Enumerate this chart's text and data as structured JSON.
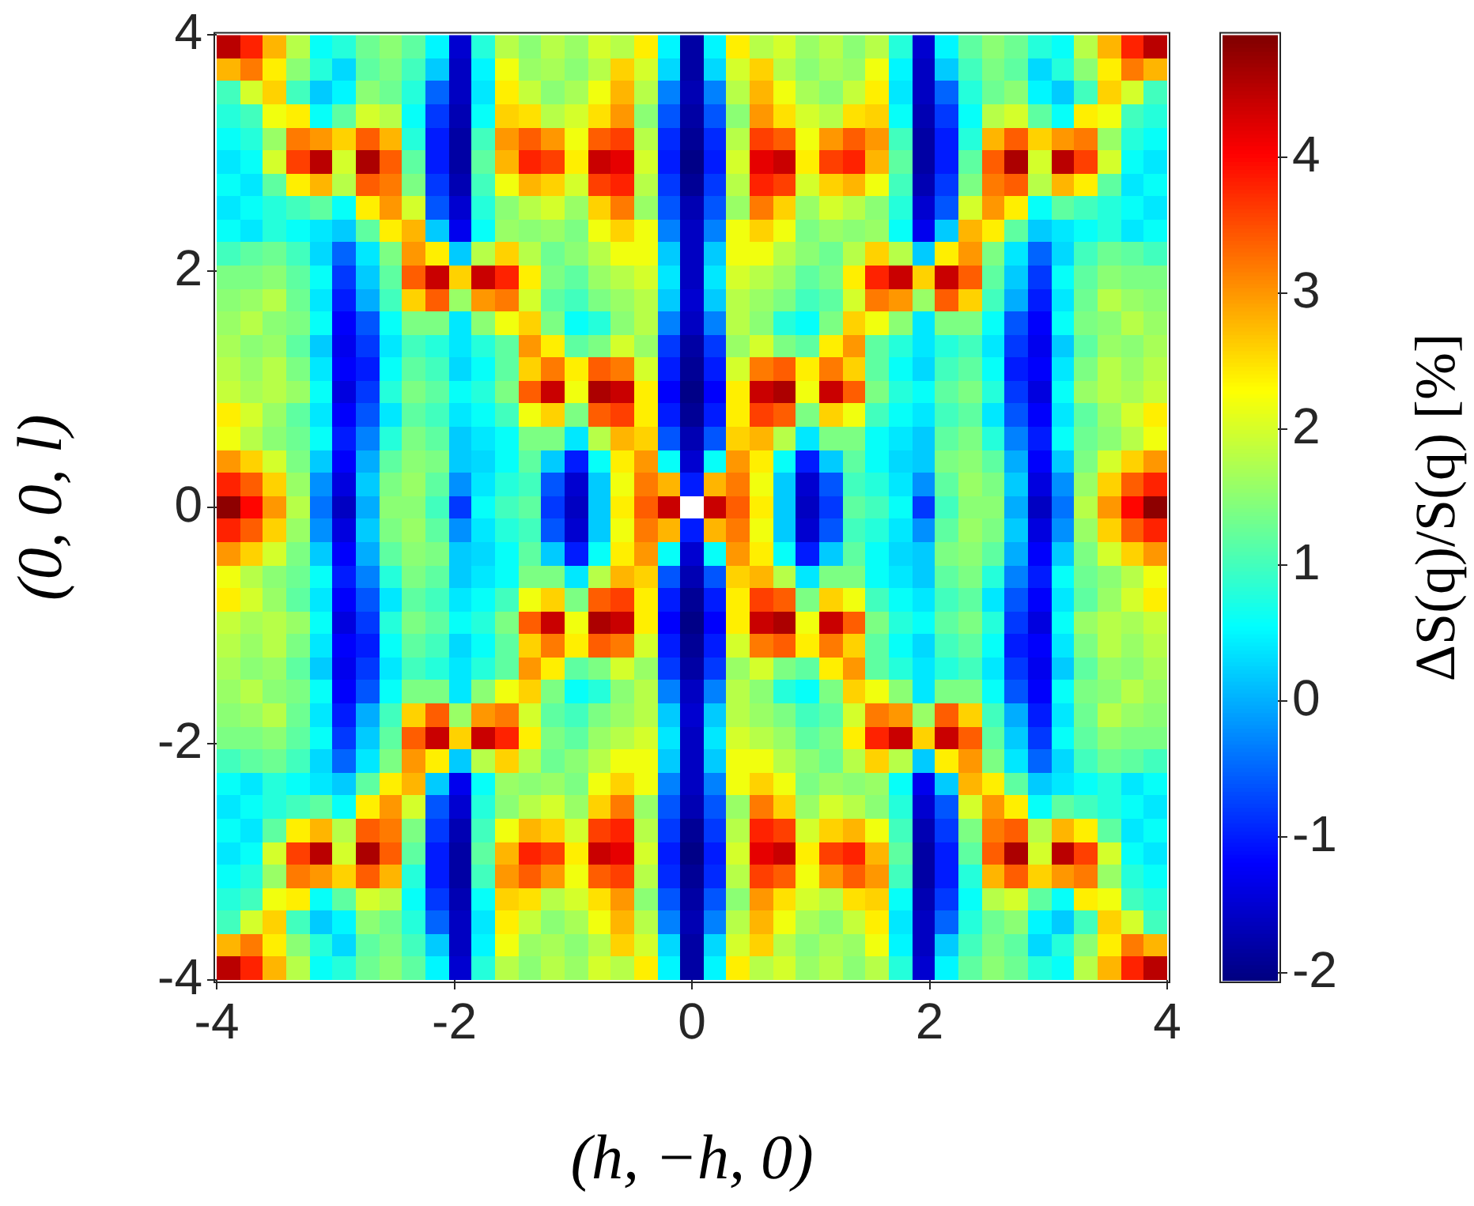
{
  "chart_data": {
    "type": "heatmap",
    "xlabel": "(h, −h, 0)",
    "ylabel": "(0, 0, l)",
    "clabel": "ΔS(q)/S(q) [%]",
    "xlim": [
      -4.0,
      4.0
    ],
    "ylim": [
      -4,
      4
    ],
    "xticks": [
      -4,
      -2,
      0,
      2,
      4
    ],
    "yticks": [
      -4,
      -2,
      0,
      2,
      4
    ],
    "clim": [
      -2.05,
      4.9
    ],
    "cticks": [
      -2,
      -1,
      0,
      1,
      2,
      3,
      4
    ],
    "x": [
      -3.902,
      -3.707,
      -3.512,
      -3.317,
      -3.122,
      -2.927,
      -2.732,
      -2.537,
      -2.341,
      -2.146,
      -1.951,
      -1.756,
      -1.561,
      -1.366,
      -1.171,
      -0.976,
      -0.78,
      -0.585,
      -0.39,
      -0.195,
      0,
      0.195,
      0.39,
      0.585,
      0.78,
      0.976,
      1.171,
      1.366,
      1.561,
      1.756,
      1.951,
      2.146,
      2.341,
      2.537,
      2.732,
      2.927,
      3.122,
      3.317,
      3.512,
      3.707,
      3.902
    ],
    "y": [
      3.902,
      3.707,
      3.512,
      3.317,
      3.122,
      2.927,
      2.732,
      2.537,
      2.341,
      2.146,
      1.951,
      1.756,
      1.561,
      1.366,
      1.171,
      0.976,
      0.78,
      0.585,
      0.39,
      0.195,
      0,
      -0.195,
      -0.39,
      -0.585,
      -0.78,
      -0.976,
      -1.171,
      -1.366,
      -1.561,
      -1.756,
      -1.951,
      -2.146,
      -2.341,
      -2.537,
      -2.732,
      -2.927,
      -3.122,
      -3.317,
      -3.512,
      -3.707,
      -3.902
    ],
    "cells": [
      [
        4.5,
        3.8,
        2.8,
        1.8,
        0.6,
        0.8,
        1.3,
        1.5,
        1.2,
        0.5,
        -1.5,
        0.8,
        1.8,
        1.5,
        1.8,
        1.6,
        2,
        1.8,
        2.4,
        0.5,
        -1.8,
        0.5,
        2.4,
        1.8,
        2,
        1.6,
        1.8,
        1.5,
        1.8,
        0.8,
        -1.5,
        0.5,
        1.2,
        1.5,
        1.3,
        0.8,
        0.6,
        1.8,
        2.8,
        3.8,
        4.5
      ],
      [
        2.8,
        3.2,
        2.4,
        1.5,
        0.8,
        0.3,
        1.2,
        1.4,
        1.0,
        0.2,
        -1.6,
        0.5,
        2.2,
        1.6,
        1.7,
        1.5,
        1.8,
        2.6,
        2.0,
        0.3,
        -1.8,
        0.3,
        2.0,
        2.6,
        1.8,
        1.5,
        1.7,
        1.6,
        2.2,
        0.5,
        -1.6,
        0.2,
        1.0,
        1.4,
        1.2,
        0.3,
        0.8,
        1.5,
        2.4,
        3.2,
        2.8
      ],
      [
        1.0,
        2.0,
        2.6,
        1.0,
        0.2,
        0.5,
        1.5,
        1.3,
        0.8,
        -0.5,
        -1.6,
        0.4,
        2.4,
        1.9,
        1.5,
        1.7,
        2.2,
        2.8,
        1.8,
        -0.3,
        -1.7,
        -0.3,
        1.8,
        2.8,
        2.2,
        1.7,
        1.5,
        1.9,
        2.4,
        0.4,
        -1.6,
        -0.5,
        0.8,
        1.3,
        1.5,
        0.5,
        0.2,
        1.0,
        2.6,
        2.0,
        1.0
      ],
      [
        0.8,
        1.0,
        2.2,
        2.4,
        0.6,
        1.2,
        2.0,
        1.8,
        0.6,
        -0.8,
        -1.7,
        0.6,
        2.6,
        2.5,
        1.8,
        2.0,
        2.5,
        3.0,
        1.5,
        -0.6,
        -1.8,
        -0.6,
        1.5,
        3.0,
        2.5,
        2.0,
        1.8,
        2.5,
        2.6,
        0.6,
        -1.7,
        -0.8,
        0.6,
        1.8,
        2.0,
        1.2,
        0.6,
        2.4,
        2.2,
        1.0,
        0.8
      ],
      [
        0.6,
        0.8,
        1.6,
        3.2,
        3.0,
        2.6,
        3.4,
        2.8,
        0.8,
        -1.0,
        -1.8,
        1.0,
        3.0,
        3.4,
        3.0,
        2.2,
        3.4,
        3.6,
        1.8,
        -0.9,
        -1.9,
        -0.9,
        1.8,
        3.6,
        3.4,
        2.2,
        3.0,
        3.4,
        3.0,
        1.0,
        -1.8,
        -1.0,
        0.8,
        2.8,
        3.4,
        2.6,
        3.0,
        3.2,
        1.6,
        0.8,
        0.6
      ],
      [
        0.4,
        0.6,
        2.0,
        3.6,
        4.5,
        2.0,
        4.6,
        3.4,
        1.2,
        -1.0,
        -1.8,
        1.2,
        2.8,
        3.8,
        3.6,
        2.4,
        4.4,
        4.2,
        2.0,
        -1.0,
        -2.0,
        -1.0,
        2.0,
        4.2,
        4.4,
        2.4,
        3.6,
        3.8,
        2.8,
        1.2,
        -1.8,
        -1.0,
        1.2,
        3.4,
        4.6,
        2.0,
        4.5,
        3.6,
        2.0,
        0.6,
        0.4
      ],
      [
        0.6,
        0.4,
        1.2,
        2.4,
        2.8,
        1.8,
        3.4,
        3.2,
        1.4,
        -0.8,
        -1.7,
        1.0,
        2.2,
        2.8,
        2.6,
        2.0,
        3.6,
        3.8,
        1.8,
        -0.8,
        -1.9,
        -0.8,
        1.8,
        3.8,
        3.6,
        2.0,
        2.6,
        2.8,
        2.2,
        1.0,
        -1.7,
        -0.8,
        1.4,
        3.2,
        3.4,
        1.8,
        2.8,
        2.4,
        1.2,
        0.4,
        0.6
      ],
      [
        0.4,
        0.6,
        0.8,
        1.0,
        1.2,
        0.6,
        2.4,
        3.0,
        2.0,
        -0.6,
        -1.5,
        0.8,
        1.5,
        1.8,
        2.0,
        1.6,
        2.6,
        3.2,
        1.6,
        -0.6,
        -1.7,
        -0.6,
        1.6,
        3.2,
        2.6,
        1.6,
        2.0,
        1.8,
        1.5,
        0.8,
        -1.5,
        -0.6,
        2.0,
        3.0,
        2.4,
        0.6,
        1.2,
        1.0,
        0.8,
        0.6,
        0.4
      ],
      [
        0.6,
        0.4,
        0.8,
        0.6,
        0.4,
        0.2,
        1.2,
        2.4,
        2.8,
        0.2,
        -1.3,
        0.6,
        1.6,
        1.5,
        1.6,
        1.4,
        2.2,
        2.6,
        2.2,
        -0.3,
        -1.6,
        -0.3,
        2.2,
        2.6,
        2.2,
        1.4,
        1.6,
        1.5,
        1.6,
        0.6,
        -1.3,
        0.2,
        2.8,
        2.4,
        1.2,
        0.2,
        0.4,
        0.6,
        0.8,
        0.4,
        0.6
      ],
      [
        1.0,
        1.2,
        1.3,
        1.0,
        0.3,
        -0.5,
        0.4,
        1.4,
        3.0,
        2.4,
        0.2,
        1.8,
        2.6,
        1.8,
        1.3,
        1.5,
        1.8,
        2.2,
        2.2,
        0.2,
        -1.6,
        0.2,
        2.2,
        2.2,
        1.8,
        1.5,
        1.3,
        1.8,
        2.6,
        1.8,
        0.2,
        2.4,
        3.0,
        1.4,
        0.4,
        -0.5,
        0.3,
        1.0,
        1.3,
        1.2,
        1.0
      ],
      [
        1.4,
        1.4,
        1.5,
        1.2,
        0.6,
        -0.8,
        0.2,
        1.2,
        3.4,
        4.4,
        2.6,
        4.4,
        3.8,
        2.4,
        1.4,
        1.2,
        1.6,
        1.8,
        2.0,
        0.4,
        -1.6,
        0.4,
        2.0,
        1.8,
        1.6,
        1.2,
        1.4,
        2.4,
        3.8,
        4.4,
        2.6,
        4.4,
        3.4,
        1.2,
        0.2,
        -0.8,
        0.6,
        1.2,
        1.5,
        1.4,
        1.4
      ],
      [
        1.5,
        1.6,
        1.8,
        1.3,
        0.4,
        -1.0,
        0.0,
        1.0,
        2.6,
        3.4,
        1.6,
        3.0,
        3.2,
        2.0,
        1.2,
        1.0,
        1.4,
        1.6,
        1.8,
        0.2,
        -1.5,
        0.2,
        1.8,
        1.6,
        1.4,
        1.0,
        1.2,
        2.0,
        3.2,
        3.0,
        1.6,
        3.4,
        2.6,
        1.0,
        0.0,
        -1.0,
        0.4,
        1.3,
        1.8,
        1.6,
        1.5
      ],
      [
        1.6,
        1.8,
        1.5,
        1.4,
        0.6,
        -1.2,
        -0.6,
        0.6,
        1.4,
        1.4,
        0.4,
        1.5,
        2.2,
        2.6,
        1.4,
        0.6,
        0.8,
        1.5,
        1.8,
        -0.3,
        -1.6,
        -0.3,
        1.8,
        1.5,
        0.8,
        0.6,
        1.4,
        2.6,
        2.2,
        1.5,
        0.4,
        1.4,
        1.4,
        0.6,
        -0.6,
        -1.2,
        0.6,
        1.4,
        1.5,
        1.8,
        1.6
      ],
      [
        1.7,
        1.5,
        1.6,
        1.2,
        0.2,
        -1.3,
        -0.8,
        0.4,
        1.0,
        0.8,
        0.4,
        0.8,
        1.2,
        3.0,
        2.4,
        1.2,
        1.4,
        2.0,
        1.6,
        -0.8,
        -1.8,
        -0.8,
        1.6,
        2.0,
        1.4,
        1.2,
        2.4,
        3.0,
        1.2,
        0.8,
        0.4,
        0.8,
        1.0,
        0.4,
        -0.8,
        -1.3,
        0.2,
        1.2,
        1.6,
        1.5,
        1.7
      ],
      [
        1.8,
        1.6,
        1.8,
        1.4,
        0.4,
        -1.2,
        -1.0,
        0.6,
        1.2,
        1.0,
        0.3,
        0.6,
        1.2,
        2.6,
        3.2,
        2.4,
        3.4,
        3.2,
        2.0,
        -1.0,
        -1.9,
        -1.0,
        2.0,
        3.2,
        3.4,
        2.4,
        3.2,
        2.6,
        1.2,
        0.6,
        0.3,
        1.0,
        1.2,
        0.6,
        -1.0,
        -1.2,
        0.4,
        1.4,
        1.8,
        1.6,
        1.8
      ],
      [
        1.9,
        1.7,
        1.8,
        1.6,
        0.6,
        -1.4,
        -0.8,
        0.8,
        1.4,
        1.2,
        0.6,
        0.8,
        1.4,
        3.4,
        4.4,
        2.2,
        4.6,
        4.4,
        2.4,
        -1.2,
        -2.0,
        -1.2,
        2.4,
        4.4,
        4.6,
        2.2,
        4.4,
        3.4,
        1.4,
        0.8,
        0.6,
        1.2,
        1.4,
        0.8,
        -0.8,
        -1.4,
        0.6,
        1.6,
        1.8,
        1.7,
        1.9
      ],
      [
        2.4,
        2.0,
        1.6,
        1.2,
        0.4,
        -1.2,
        -0.6,
        0.4,
        1.2,
        1.0,
        0.4,
        0.6,
        1.0,
        2.2,
        2.6,
        1.4,
        3.4,
        3.6,
        2.4,
        -1.0,
        -1.9,
        -1.0,
        2.4,
        3.6,
        3.4,
        1.4,
        2.6,
        2.2,
        1.0,
        0.6,
        0.4,
        1.0,
        1.2,
        0.4,
        -0.6,
        -1.2,
        0.4,
        1.2,
        1.6,
        2.0,
        2.4
      ],
      [
        2.2,
        1.8,
        1.5,
        1.3,
        0.6,
        -1.0,
        -0.3,
        0.8,
        1.4,
        1.2,
        0.2,
        0.4,
        0.6,
        1.4,
        1.4,
        0.4,
        1.8,
        2.8,
        2.6,
        -0.6,
        -1.7,
        -0.6,
        2.6,
        2.8,
        1.8,
        0.4,
        1.4,
        1.4,
        0.6,
        0.4,
        0.2,
        1.2,
        1.4,
        0.8,
        -0.3,
        -1.0,
        0.6,
        1.3,
        1.5,
        1.8,
        2.2
      ],
      [
        3.0,
        2.6,
        2.0,
        1.4,
        0.2,
        -1.2,
        0.0,
        1.2,
        1.5,
        1.4,
        0.2,
        0.3,
        0.6,
        1.2,
        0.2,
        -1.0,
        0.6,
        2.4,
        3.0,
        0.6,
        -1.5,
        0.6,
        3.0,
        2.4,
        0.6,
        -1.0,
        0.2,
        1.2,
        0.6,
        0.3,
        0.2,
        1.4,
        1.5,
        1.2,
        0.0,
        -1.2,
        0.2,
        1.4,
        2.0,
        2.6,
        3.0
      ],
      [
        3.8,
        3.4,
        2.6,
        1.6,
        -0.2,
        -1.4,
        0.2,
        1.4,
        1.6,
        1.2,
        -0.2,
        0.4,
        0.8,
        1.0,
        -0.6,
        -1.5,
        0.2,
        2.2,
        3.2,
        2.8,
        -1.0,
        2.8,
        3.2,
        2.2,
        0.2,
        -1.5,
        -0.6,
        1.0,
        0.8,
        0.4,
        -0.2,
        1.2,
        1.6,
        1.4,
        0.2,
        -1.4,
        -0.2,
        1.6,
        2.6,
        3.4,
        3.8
      ],
      [
        4.8,
        4.0,
        3.0,
        1.8,
        -0.4,
        -1.6,
        0.0,
        1.5,
        1.5,
        1.0,
        -0.8,
        0.6,
        1.0,
        1.2,
        -0.8,
        -1.6,
        0.2,
        2.4,
        3.4,
        4.4,
        null,
        4.4,
        3.4,
        2.4,
        0.2,
        -1.6,
        -0.8,
        1.2,
        1.0,
        0.6,
        -0.8,
        1.0,
        1.5,
        1.5,
        0.0,
        -1.6,
        -0.4,
        1.8,
        3.0,
        4.0,
        4.8
      ],
      [
        3.8,
        3.4,
        2.6,
        1.6,
        -0.2,
        -1.4,
        0.2,
        1.4,
        1.6,
        1.2,
        -0.2,
        0.4,
        0.8,
        1.0,
        -0.6,
        -1.5,
        0.2,
        2.2,
        3.2,
        2.8,
        -1.0,
        2.8,
        3.2,
        2.2,
        0.2,
        -1.5,
        -0.6,
        1.0,
        0.8,
        0.4,
        -0.2,
        1.2,
        1.6,
        1.4,
        0.2,
        -1.4,
        -0.2,
        1.6,
        2.6,
        3.4,
        3.8
      ],
      [
        3.0,
        2.6,
        2.0,
        1.4,
        0.2,
        -1.2,
        0.0,
        1.2,
        1.5,
        1.4,
        0.2,
        0.3,
        0.6,
        1.2,
        0.2,
        -1.0,
        0.6,
        2.4,
        3.0,
        0.6,
        -1.5,
        0.6,
        3.0,
        2.4,
        0.6,
        -1.0,
        0.2,
        1.2,
        0.6,
        0.3,
        0.2,
        1.4,
        1.5,
        1.2,
        0.0,
        -1.2,
        0.2,
        1.4,
        2.0,
        2.6,
        3.0
      ],
      [
        2.2,
        1.8,
        1.5,
        1.3,
        0.6,
        -1.0,
        -0.3,
        0.8,
        1.4,
        1.2,
        0.2,
        0.4,
        0.6,
        1.4,
        1.4,
        0.4,
        1.8,
        2.8,
        2.6,
        -0.6,
        -1.7,
        -0.6,
        2.6,
        2.8,
        1.8,
        0.4,
        1.4,
        1.4,
        0.6,
        0.4,
        0.2,
        1.2,
        1.4,
        0.8,
        -0.3,
        -1.0,
        0.6,
        1.3,
        1.5,
        1.8,
        2.2
      ],
      [
        2.4,
        2.0,
        1.6,
        1.2,
        0.4,
        -1.2,
        -0.6,
        0.4,
        1.2,
        1.0,
        0.4,
        0.6,
        1.0,
        2.2,
        2.6,
        1.4,
        3.4,
        3.6,
        2.4,
        -1.0,
        -1.9,
        -1.0,
        2.4,
        3.6,
        3.4,
        1.4,
        2.6,
        2.2,
        1.0,
        0.6,
        0.4,
        1.0,
        1.2,
        0.4,
        -0.6,
        -1.2,
        0.4,
        1.2,
        1.6,
        2.0,
        2.4
      ],
      [
        1.9,
        1.7,
        1.8,
        1.6,
        0.6,
        -1.4,
        -0.8,
        0.8,
        1.4,
        1.2,
        0.6,
        0.8,
        1.4,
        3.4,
        4.4,
        2.2,
        4.6,
        4.4,
        2.4,
        -1.2,
        -2.0,
        -1.2,
        2.4,
        4.4,
        4.6,
        2.2,
        4.4,
        3.4,
        1.4,
        0.8,
        0.6,
        1.2,
        1.4,
        0.8,
        -0.8,
        -1.4,
        0.6,
        1.6,
        1.8,
        1.7,
        1.9
      ],
      [
        1.8,
        1.6,
        1.8,
        1.4,
        0.4,
        -1.2,
        -1.0,
        0.6,
        1.2,
        1.0,
        0.3,
        0.6,
        1.2,
        2.6,
        3.2,
        2.4,
        3.4,
        3.2,
        2.0,
        -1.0,
        -1.9,
        -1.0,
        2.0,
        3.2,
        3.4,
        2.4,
        3.2,
        2.6,
        1.2,
        0.6,
        0.3,
        1.0,
        1.2,
        0.6,
        -1.0,
        -1.2,
        0.4,
        1.4,
        1.8,
        1.6,
        1.8
      ],
      [
        1.7,
        1.5,
        1.6,
        1.2,
        0.2,
        -1.3,
        -0.8,
        0.4,
        1.0,
        0.8,
        0.4,
        0.8,
        1.2,
        3.0,
        2.4,
        1.2,
        1.4,
        2.0,
        1.6,
        -0.8,
        -1.8,
        -0.8,
        1.6,
        2.0,
        1.4,
        1.2,
        2.4,
        3.0,
        1.2,
        0.8,
        0.4,
        0.8,
        1.0,
        0.4,
        -0.8,
        -1.3,
        0.2,
        1.2,
        1.6,
        1.5,
        1.7
      ],
      [
        1.6,
        1.8,
        1.5,
        1.4,
        0.6,
        -1.2,
        -0.6,
        0.6,
        1.4,
        1.4,
        0.4,
        1.5,
        2.2,
        2.6,
        1.4,
        0.6,
        0.8,
        1.5,
        1.8,
        -0.3,
        -1.6,
        -0.3,
        1.8,
        1.5,
        0.8,
        0.6,
        1.4,
        2.6,
        2.2,
        1.5,
        0.4,
        1.4,
        1.4,
        0.6,
        -0.6,
        -1.2,
        0.6,
        1.4,
        1.5,
        1.8,
        1.6
      ],
      [
        1.5,
        1.6,
        1.8,
        1.3,
        0.4,
        -1.0,
        0.0,
        1.0,
        2.6,
        3.4,
        1.6,
        3.0,
        3.2,
        2.0,
        1.2,
        1.0,
        1.4,
        1.6,
        1.8,
        0.2,
        -1.5,
        0.2,
        1.8,
        1.6,
        1.4,
        1.0,
        1.2,
        2.0,
        3.2,
        3.0,
        1.6,
        3.4,
        2.6,
        1.0,
        0.0,
        -1.0,
        0.4,
        1.3,
        1.8,
        1.6,
        1.5
      ],
      [
        1.4,
        1.4,
        1.5,
        1.2,
        0.6,
        -0.8,
        0.2,
        1.2,
        3.4,
        4.4,
        2.6,
        4.4,
        3.8,
        2.4,
        1.4,
        1.2,
        1.6,
        1.8,
        2.0,
        0.4,
        -1.6,
        0.4,
        2.0,
        1.8,
        1.6,
        1.2,
        1.4,
        2.4,
        3.8,
        4.4,
        2.6,
        4.4,
        3.4,
        1.2,
        0.2,
        -0.8,
        0.6,
        1.2,
        1.5,
        1.4,
        1.4
      ],
      [
        1.0,
        1.2,
        1.3,
        1.0,
        0.3,
        -0.5,
        0.4,
        1.4,
        3.0,
        2.4,
        0.2,
        1.8,
        2.6,
        1.8,
        1.3,
        1.5,
        1.8,
        2.2,
        2.2,
        0.2,
        -1.6,
        0.2,
        2.2,
        2.2,
        1.8,
        1.5,
        1.3,
        1.8,
        2.6,
        1.8,
        0.2,
        2.4,
        3.0,
        1.4,
        0.4,
        -0.5,
        0.3,
        1.0,
        1.3,
        1.2,
        1.0
      ],
      [
        0.6,
        0.4,
        0.8,
        0.6,
        0.4,
        0.2,
        1.2,
        2.4,
        2.8,
        0.2,
        -1.3,
        0.6,
        1.6,
        1.5,
        1.6,
        1.4,
        2.2,
        2.6,
        2.2,
        -0.3,
        -1.6,
        -0.3,
        2.2,
        2.6,
        2.2,
        1.4,
        1.6,
        1.5,
        1.6,
        0.6,
        -1.3,
        0.2,
        2.8,
        2.4,
        1.2,
        0.2,
        0.4,
        0.6,
        0.8,
        0.4,
        0.6
      ],
      [
        0.4,
        0.6,
        0.8,
        1.0,
        1.2,
        0.6,
        2.4,
        3.0,
        2.0,
        -0.6,
        -1.5,
        0.8,
        1.5,
        1.8,
        2.0,
        1.6,
        2.6,
        3.2,
        1.6,
        -0.6,
        -1.7,
        -0.6,
        1.6,
        3.2,
        2.6,
        1.6,
        2.0,
        1.8,
        1.5,
        0.8,
        -1.5,
        -0.6,
        2.0,
        3.0,
        2.4,
        0.6,
        1.2,
        1.0,
        0.8,
        0.6,
        0.4
      ],
      [
        0.6,
        0.4,
        1.2,
        2.4,
        2.8,
        1.8,
        3.4,
        3.2,
        1.4,
        -0.8,
        -1.7,
        1.0,
        2.2,
        2.8,
        2.6,
        2.0,
        3.6,
        3.8,
        1.8,
        -0.8,
        -1.9,
        -0.8,
        1.8,
        3.8,
        3.6,
        2.0,
        2.6,
        2.8,
        2.2,
        1.0,
        -1.7,
        -0.8,
        1.4,
        3.2,
        3.4,
        1.8,
        2.8,
        2.4,
        1.2,
        0.4,
        0.6
      ],
      [
        0.4,
        0.6,
        2.0,
        3.6,
        4.5,
        2.0,
        4.6,
        3.4,
        1.2,
        -1.0,
        -1.8,
        1.2,
        2.8,
        3.8,
        3.6,
        2.4,
        4.4,
        4.2,
        2.0,
        -1.0,
        -2.0,
        -1.0,
        2.0,
        4.2,
        4.4,
        2.4,
        3.6,
        3.8,
        2.8,
        1.2,
        -1.8,
        -1.0,
        1.2,
        3.4,
        4.6,
        2.0,
        4.5,
        3.6,
        2.0,
        0.6,
        0.4
      ],
      [
        0.6,
        0.8,
        1.6,
        3.2,
        3.0,
        2.6,
        3.4,
        2.8,
        0.8,
        -1.0,
        -1.8,
        1.0,
        3.0,
        3.4,
        3.0,
        2.2,
        3.4,
        3.6,
        1.8,
        -0.9,
        -1.9,
        -0.9,
        1.8,
        3.6,
        3.4,
        2.2,
        3.0,
        3.4,
        3.0,
        1.0,
        -1.8,
        -1.0,
        0.8,
        2.8,
        3.4,
        2.6,
        3.0,
        3.2,
        1.6,
        0.8,
        0.6
      ],
      [
        0.8,
        1.0,
        2.2,
        2.4,
        0.6,
        1.2,
        2.0,
        1.8,
        0.6,
        -0.8,
        -1.7,
        0.6,
        2.6,
        2.5,
        1.8,
        2.0,
        2.5,
        3.0,
        1.5,
        -0.6,
        -1.8,
        -0.6,
        1.5,
        3.0,
        2.5,
        2.0,
        1.8,
        2.5,
        2.6,
        0.6,
        -1.7,
        -0.8,
        0.6,
        1.8,
        2.0,
        1.2,
        0.6,
        2.4,
        2.2,
        1.0,
        0.8
      ],
      [
        1.0,
        2.0,
        2.6,
        1.0,
        0.2,
        0.5,
        1.5,
        1.3,
        0.8,
        -0.5,
        -1.6,
        0.4,
        2.4,
        1.9,
        1.5,
        1.7,
        2.2,
        2.8,
        1.8,
        -0.3,
        -1.7,
        -0.3,
        1.8,
        2.8,
        2.2,
        1.7,
        1.5,
        1.9,
        2.4,
        0.4,
        -1.6,
        -0.5,
        0.8,
        1.3,
        1.5,
        0.5,
        0.2,
        1.0,
        2.6,
        2.0,
        1.0
      ],
      [
        2.8,
        3.2,
        2.4,
        1.5,
        0.8,
        0.3,
        1.2,
        1.4,
        1.0,
        0.2,
        -1.6,
        0.5,
        2.2,
        1.6,
        1.7,
        1.5,
        1.8,
        2.6,
        2.0,
        0.3,
        -1.8,
        0.3,
        2.0,
        2.6,
        1.8,
        1.5,
        1.7,
        1.6,
        2.2,
        0.5,
        -1.6,
        0.2,
        1.0,
        1.4,
        1.2,
        0.3,
        0.8,
        1.5,
        2.4,
        3.2,
        2.8
      ],
      [
        4.5,
        3.8,
        2.8,
        1.8,
        0.6,
        0.8,
        1.3,
        1.5,
        1.2,
        0.5,
        -1.5,
        0.8,
        1.8,
        1.5,
        1.8,
        1.6,
        2,
        1.8,
        2.4,
        0.5,
        -1.8,
        0.5,
        2.4,
        1.8,
        2,
        1.6,
        1.8,
        1.5,
        1.8,
        0.8,
        -1.5,
        0.5,
        1.2,
        1.5,
        1.3,
        0.8,
        0.6,
        1.8,
        2.8,
        3.8,
        4.5
      ]
    ]
  }
}
